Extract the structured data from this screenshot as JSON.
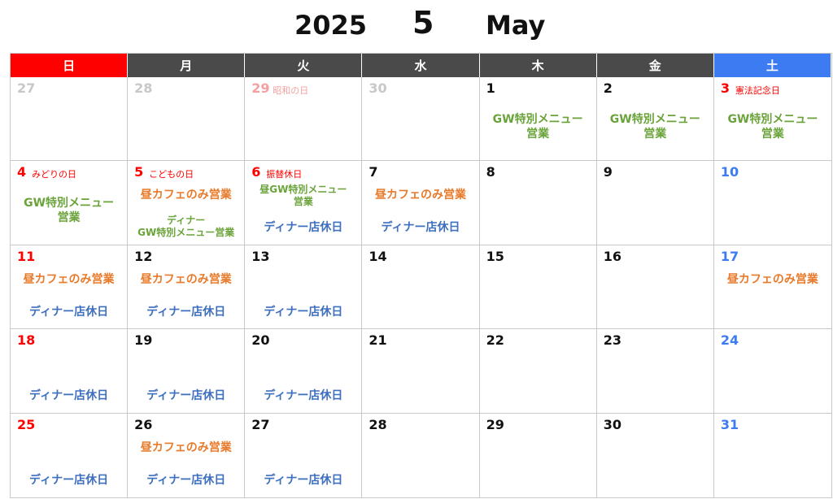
{
  "header": {
    "year": "2025",
    "month_number": "5",
    "month_name": "May"
  },
  "weekdays": [
    {
      "label": "日",
      "color": "#ff0000"
    },
    {
      "label": "月",
      "color": "#4a4a4a"
    },
    {
      "label": "火",
      "color": "#4a4a4a"
    },
    {
      "label": "水",
      "color": "#4a4a4a"
    },
    {
      "label": "木",
      "color": "#4a4a4a"
    },
    {
      "label": "金",
      "color": "#4a4a4a"
    },
    {
      "label": "土",
      "color": "#3d7bf2"
    }
  ],
  "colors": {
    "sunday": "#ff0000",
    "saturday": "#3d7bf2",
    "weekday": "#111111",
    "other_month": "#c8c8c8",
    "other_month_holiday": "#f4a0a0",
    "holiday": "#ff0000",
    "green": "#6aa33a",
    "orange": "#e87a2b",
    "blue": "#3f6fbf"
  },
  "weeks": [
    [
      {
        "day": "27",
        "kind": "other"
      },
      {
        "day": "28",
        "kind": "other"
      },
      {
        "day": "29",
        "kind": "other_holiday",
        "holiday": "昭和の日"
      },
      {
        "day": "30",
        "kind": "other"
      },
      {
        "day": "1",
        "kind": "weekday",
        "notes": [
          {
            "text": "GW特別メニュー\n営業",
            "color": "green",
            "top": 44,
            "size": 13
          }
        ]
      },
      {
        "day": "2",
        "kind": "weekday",
        "notes": [
          {
            "text": "GW特別メニュー\n営業",
            "color": "green",
            "top": 44,
            "size": 13
          }
        ]
      },
      {
        "day": "3",
        "kind": "holiday",
        "holiday": "憲法記念日",
        "notes": [
          {
            "text": "GW特別メニュー\n営業",
            "color": "green",
            "top": 44,
            "size": 13
          }
        ]
      }
    ],
    [
      {
        "day": "4",
        "kind": "holiday",
        "holiday": "みどりの日",
        "notes": [
          {
            "text": "GW特別メニュー\n営業",
            "color": "green",
            "top": 44,
            "size": 13
          }
        ]
      },
      {
        "day": "5",
        "kind": "holiday",
        "holiday": "こどもの日",
        "notes": [
          {
            "text": "昼カフェのみ営業",
            "color": "orange",
            "top": 34,
            "size": 13
          },
          {
            "text": "ディナー\nGW特別メニュー営業",
            "color": "green",
            "top": 66,
            "size": 12
          }
        ]
      },
      {
        "day": "6",
        "kind": "holiday",
        "holiday": "振替休日",
        "notes": [
          {
            "text": "昼GW特別メニュー\n営業",
            "color": "green",
            "top": 28,
            "size": 12
          },
          {
            "text": "ディナー店休日",
            "color": "blue",
            "top": 74,
            "size": 13
          }
        ]
      },
      {
        "day": "7",
        "kind": "weekday",
        "notes": [
          {
            "text": "昼カフェのみ営業",
            "color": "orange",
            "top": 34,
            "size": 13
          },
          {
            "text": "ディナー店休日",
            "color": "blue",
            "top": 74,
            "size": 13
          }
        ]
      },
      {
        "day": "8",
        "kind": "weekday"
      },
      {
        "day": "9",
        "kind": "weekday"
      },
      {
        "day": "10",
        "kind": "saturday"
      }
    ],
    [
      {
        "day": "11",
        "kind": "sunday",
        "notes": [
          {
            "text": "昼カフェのみ営業",
            "color": "orange",
            "top": 34,
            "size": 13
          },
          {
            "text": "ディナー店休日",
            "color": "blue",
            "top": 74,
            "size": 13
          }
        ]
      },
      {
        "day": "12",
        "kind": "weekday",
        "notes": [
          {
            "text": "昼カフェのみ営業",
            "color": "orange",
            "top": 34,
            "size": 13
          },
          {
            "text": "ディナー店休日",
            "color": "blue",
            "top": 74,
            "size": 13
          }
        ]
      },
      {
        "day": "13",
        "kind": "weekday",
        "notes": [
          {
            "text": "ディナー店休日",
            "color": "blue",
            "top": 74,
            "size": 13
          }
        ]
      },
      {
        "day": "14",
        "kind": "weekday"
      },
      {
        "day": "15",
        "kind": "weekday"
      },
      {
        "day": "16",
        "kind": "weekday"
      },
      {
        "day": "17",
        "kind": "saturday",
        "notes": [
          {
            "text": "昼カフェのみ営業",
            "color": "orange",
            "top": 34,
            "size": 13
          }
        ]
      }
    ],
    [
      {
        "day": "18",
        "kind": "sunday",
        "notes": [
          {
            "text": "ディナー店休日",
            "color": "blue",
            "top": 74,
            "size": 13
          }
        ]
      },
      {
        "day": "19",
        "kind": "weekday",
        "notes": [
          {
            "text": "ディナー店休日",
            "color": "blue",
            "top": 74,
            "size": 13
          }
        ]
      },
      {
        "day": "20",
        "kind": "weekday",
        "notes": [
          {
            "text": "ディナー店休日",
            "color": "blue",
            "top": 74,
            "size": 13
          }
        ]
      },
      {
        "day": "21",
        "kind": "weekday"
      },
      {
        "day": "22",
        "kind": "weekday"
      },
      {
        "day": "23",
        "kind": "weekday"
      },
      {
        "day": "24",
        "kind": "saturday"
      }
    ],
    [
      {
        "day": "25",
        "kind": "sunday",
        "notes": [
          {
            "text": "ディナー店休日",
            "color": "blue",
            "top": 74,
            "size": 13
          }
        ]
      },
      {
        "day": "26",
        "kind": "weekday",
        "notes": [
          {
            "text": "昼カフェのみ営業",
            "color": "orange",
            "top": 34,
            "size": 13
          },
          {
            "text": "ディナー店休日",
            "color": "blue",
            "top": 74,
            "size": 13
          }
        ]
      },
      {
        "day": "27",
        "kind": "weekday",
        "notes": [
          {
            "text": "ディナー店休日",
            "color": "blue",
            "top": 74,
            "size": 13
          }
        ]
      },
      {
        "day": "28",
        "kind": "weekday"
      },
      {
        "day": "29",
        "kind": "weekday"
      },
      {
        "day": "30",
        "kind": "weekday"
      },
      {
        "day": "31",
        "kind": "saturday"
      }
    ]
  ]
}
